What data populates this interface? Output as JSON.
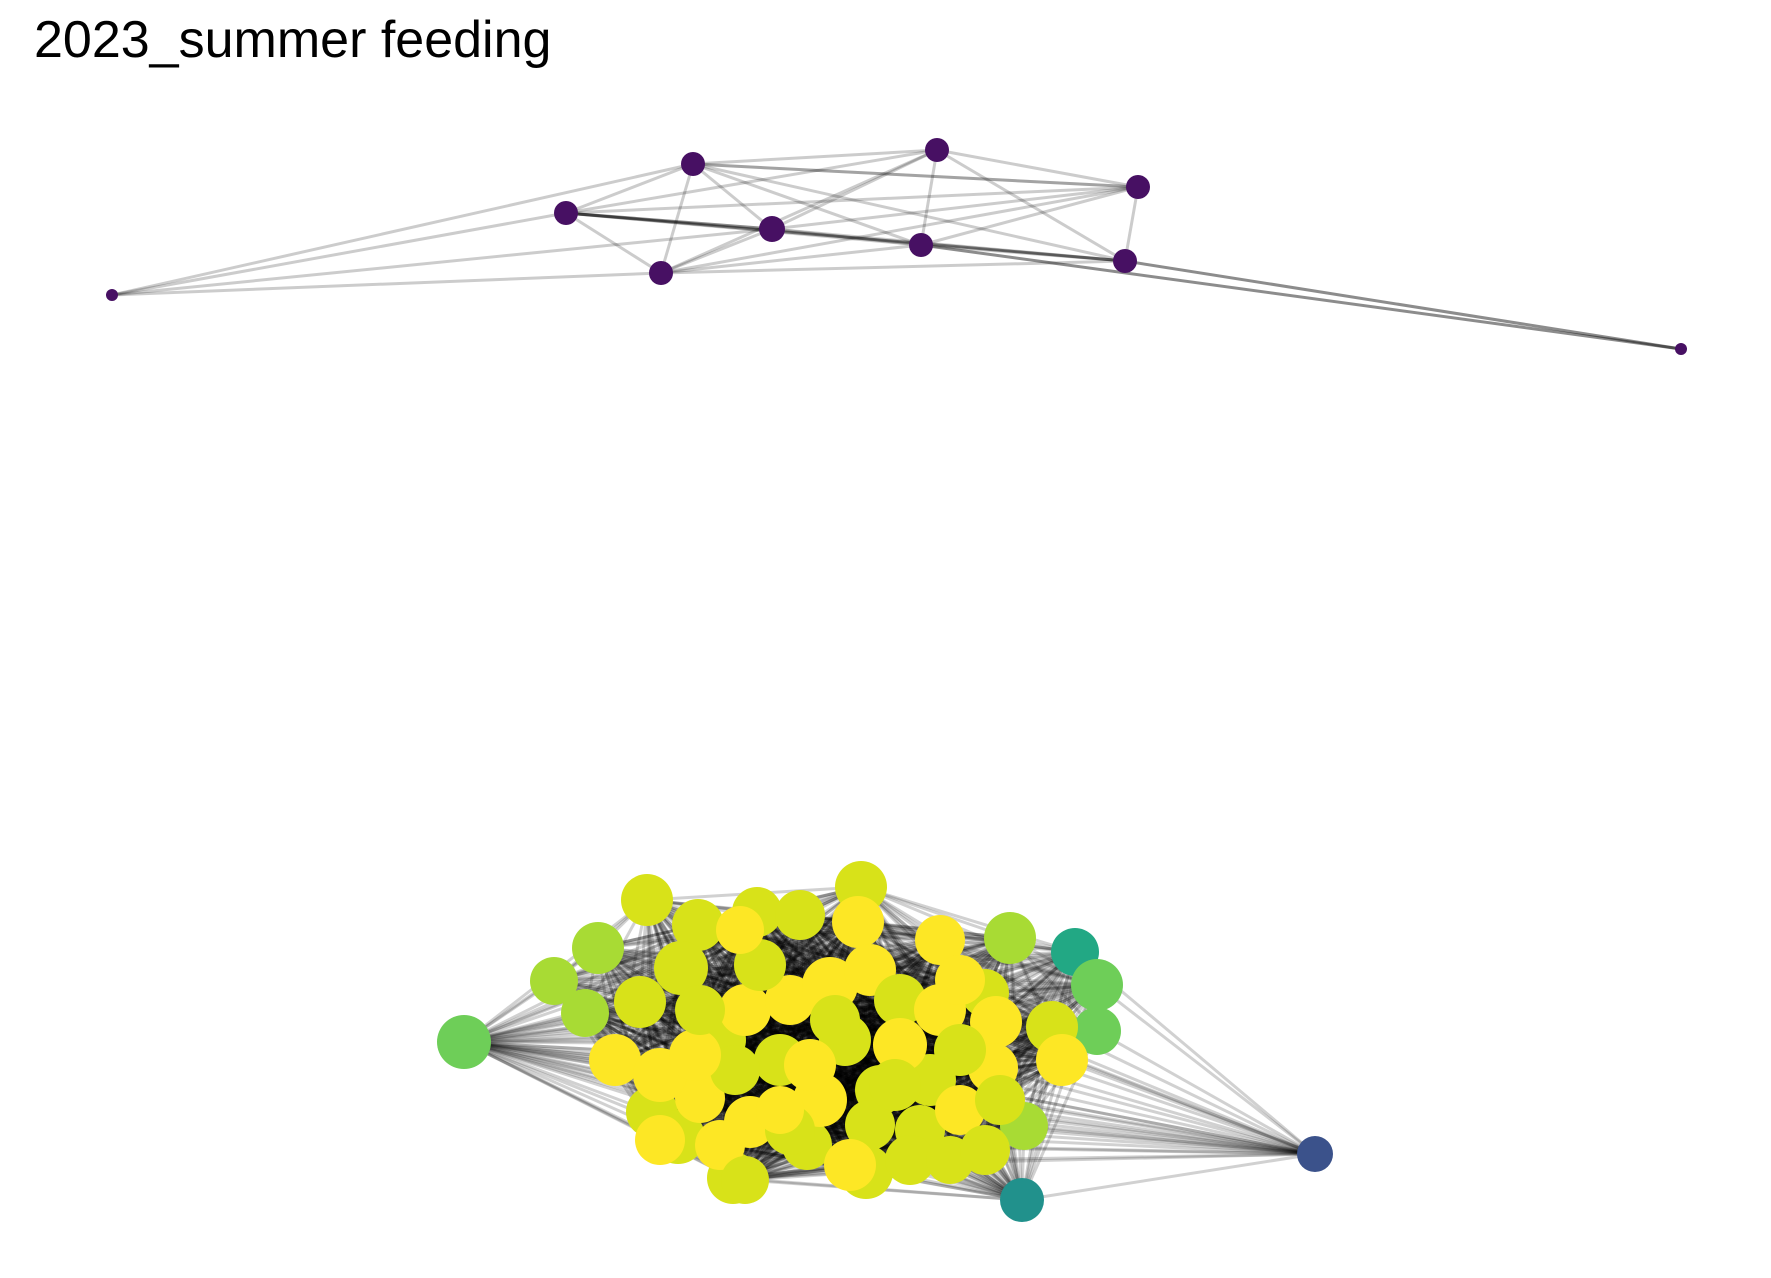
{
  "title": "2023_summer feeding",
  "chart_data": {
    "type": "network",
    "title": "2023_summer feeding",
    "grid": false,
    "axes": false,
    "components": [
      {
        "name": "",
        "node_color": "#471063",
        "edge_color": "#000000",
        "note_nodes": 12
      },
      {
        "name": "",
        "node_palette": [
          "#fde725",
          "#d8e219",
          "#a8db34",
          "#6ece58",
          "#22a884",
          "#21918c",
          "#3b528b"
        ],
        "edge_color": "#000000"
      }
    ]
  }
}
